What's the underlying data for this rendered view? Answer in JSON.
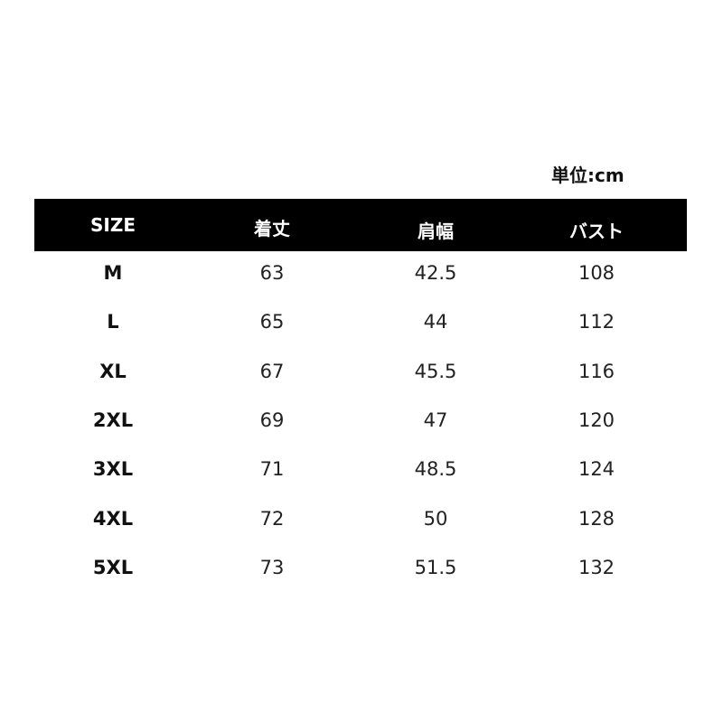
{
  "unit": "単位:cm",
  "headers": [
    "SIZE",
    "着丈",
    "肩幅",
    "バスト"
  ],
  "rows": [
    [
      "M",
      "63",
      "42.5",
      "108"
    ],
    [
      "L",
      "65",
      "44",
      "112"
    ],
    [
      "XL",
      "67",
      "45.5",
      "116"
    ],
    [
      "2XL",
      "69",
      "47",
      "120"
    ],
    [
      "3XL",
      "71",
      "48.5",
      "124"
    ],
    [
      "4XL",
      "72",
      "50",
      "128"
    ],
    [
      "5XL",
      "73",
      "51.5",
      "132"
    ]
  ]
}
